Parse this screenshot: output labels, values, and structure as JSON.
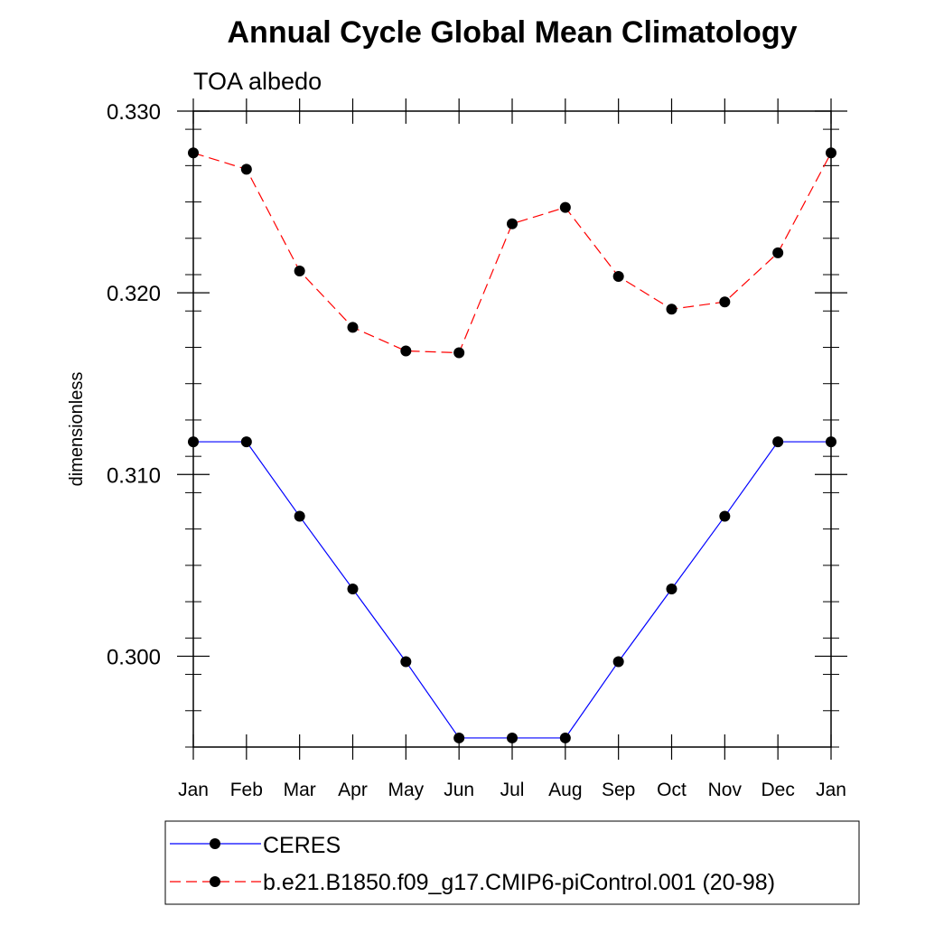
{
  "chart_data": {
    "type": "line",
    "title": "Annual Cycle Global Mean Climatology",
    "subtitle": "TOA albedo",
    "xlabel": "",
    "ylabel": "dimensionless",
    "x": [
      "Jan",
      "Feb",
      "Mar",
      "Apr",
      "May",
      "Jun",
      "Jul",
      "Aug",
      "Sep",
      "Oct",
      "Nov",
      "Dec",
      "Jan"
    ],
    "ylim": [
      0.295,
      0.33
    ],
    "yticks": [
      "0.300",
      "0.310",
      "0.320",
      "0.330"
    ],
    "grid": false,
    "legend_position": "bottom",
    "series": [
      {
        "name": "CERES",
        "color": "#0000ff",
        "style": "solid",
        "marker": "filled-circle",
        "values": [
          0.3118,
          0.3118,
          0.3077,
          0.3037,
          0.2997,
          0.2955,
          0.2955,
          0.2955,
          0.2997,
          0.3037,
          0.3077,
          0.3118,
          0.3118
        ]
      },
      {
        "name": "b.e21.B1850.f09_g17.CMIP6-piControl.001 (20-98)",
        "color": "#ff0000",
        "style": "dashed",
        "marker": "filled-circle",
        "values": [
          0.3277,
          0.3268,
          0.3212,
          0.3181,
          0.3168,
          0.3167,
          0.3238,
          0.3247,
          0.3209,
          0.3191,
          0.3195,
          0.3222,
          0.3277
        ]
      }
    ]
  }
}
